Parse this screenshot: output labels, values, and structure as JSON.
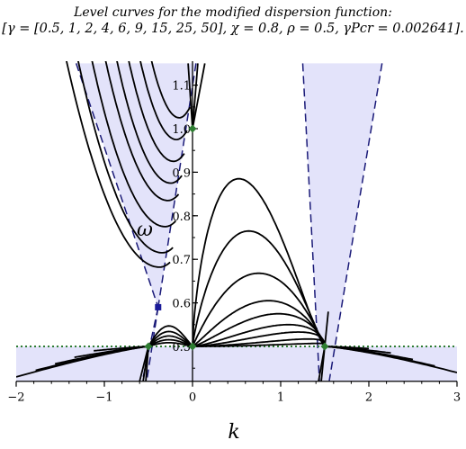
{
  "title": {
    "line1": "Level curves for the modified dispersion function:",
    "line2": "[γ = [0.5, 1, 2, 4, 6, 9, 15, 25, 50], χ = 0.8, ρ = 0.5, γPcr = 0.002641]."
  },
  "chart_data": {
    "type": "line",
    "title": "Level curves for the modified dispersion function:",
    "subtitle": "[γ = [0.5, 1, 2, 4, 6, 9, 15, 25, 50], χ = 0.8, ρ = 0.5, γPcr = 0.002641].",
    "xlabel": "k",
    "ylabel": "ω",
    "xlim": [
      -2,
      3
    ],
    "ylim": [
      0.42,
      1.15
    ],
    "x_ticks": [
      "−2",
      "−1",
      "0",
      "1",
      "2",
      "3"
    ],
    "y_ticks": [
      "0.5",
      "0.6",
      "0.7",
      "0.8",
      "0.9",
      "1.0",
      "1.1"
    ],
    "gamma_values": [
      0.5,
      1,
      2,
      4,
      6,
      9,
      15,
      25,
      50
    ],
    "chi": 0.8,
    "rho": 0.5,
    "gamma_Pcr": 0.002641,
    "horizontal_line": 0.5,
    "special_points": [
      {
        "k": 0,
        "omega": 1.0,
        "marker": "diamond"
      },
      {
        "k": 0,
        "omega": 0.5,
        "marker": "diamond"
      },
      {
        "k": -0.5,
        "omega": 0.5,
        "marker": "diamond"
      },
      {
        "k": 1.5,
        "omega": 0.5,
        "marker": "diamond"
      },
      {
        "k": -0.39,
        "omega": 0.59,
        "marker": "square"
      }
    ],
    "right_lobe_peaks": [
      0.885,
      0.765,
      0.668,
      0.605,
      0.575,
      0.55,
      0.533,
      0.517,
      0.507
    ],
    "left_branch_minima": [
      1.025,
      0.975,
      0.925,
      0.875,
      0.835,
      0.775,
      0.715,
      0.682
    ],
    "colors": {
      "band_fill": "#e3e3fa",
      "band_edge": "#1a1a78",
      "curve": "#000000",
      "marker_point": "#2e7d32",
      "marker_square": "#1a1a99",
      "dotted_line": "#2e7d32"
    }
  }
}
